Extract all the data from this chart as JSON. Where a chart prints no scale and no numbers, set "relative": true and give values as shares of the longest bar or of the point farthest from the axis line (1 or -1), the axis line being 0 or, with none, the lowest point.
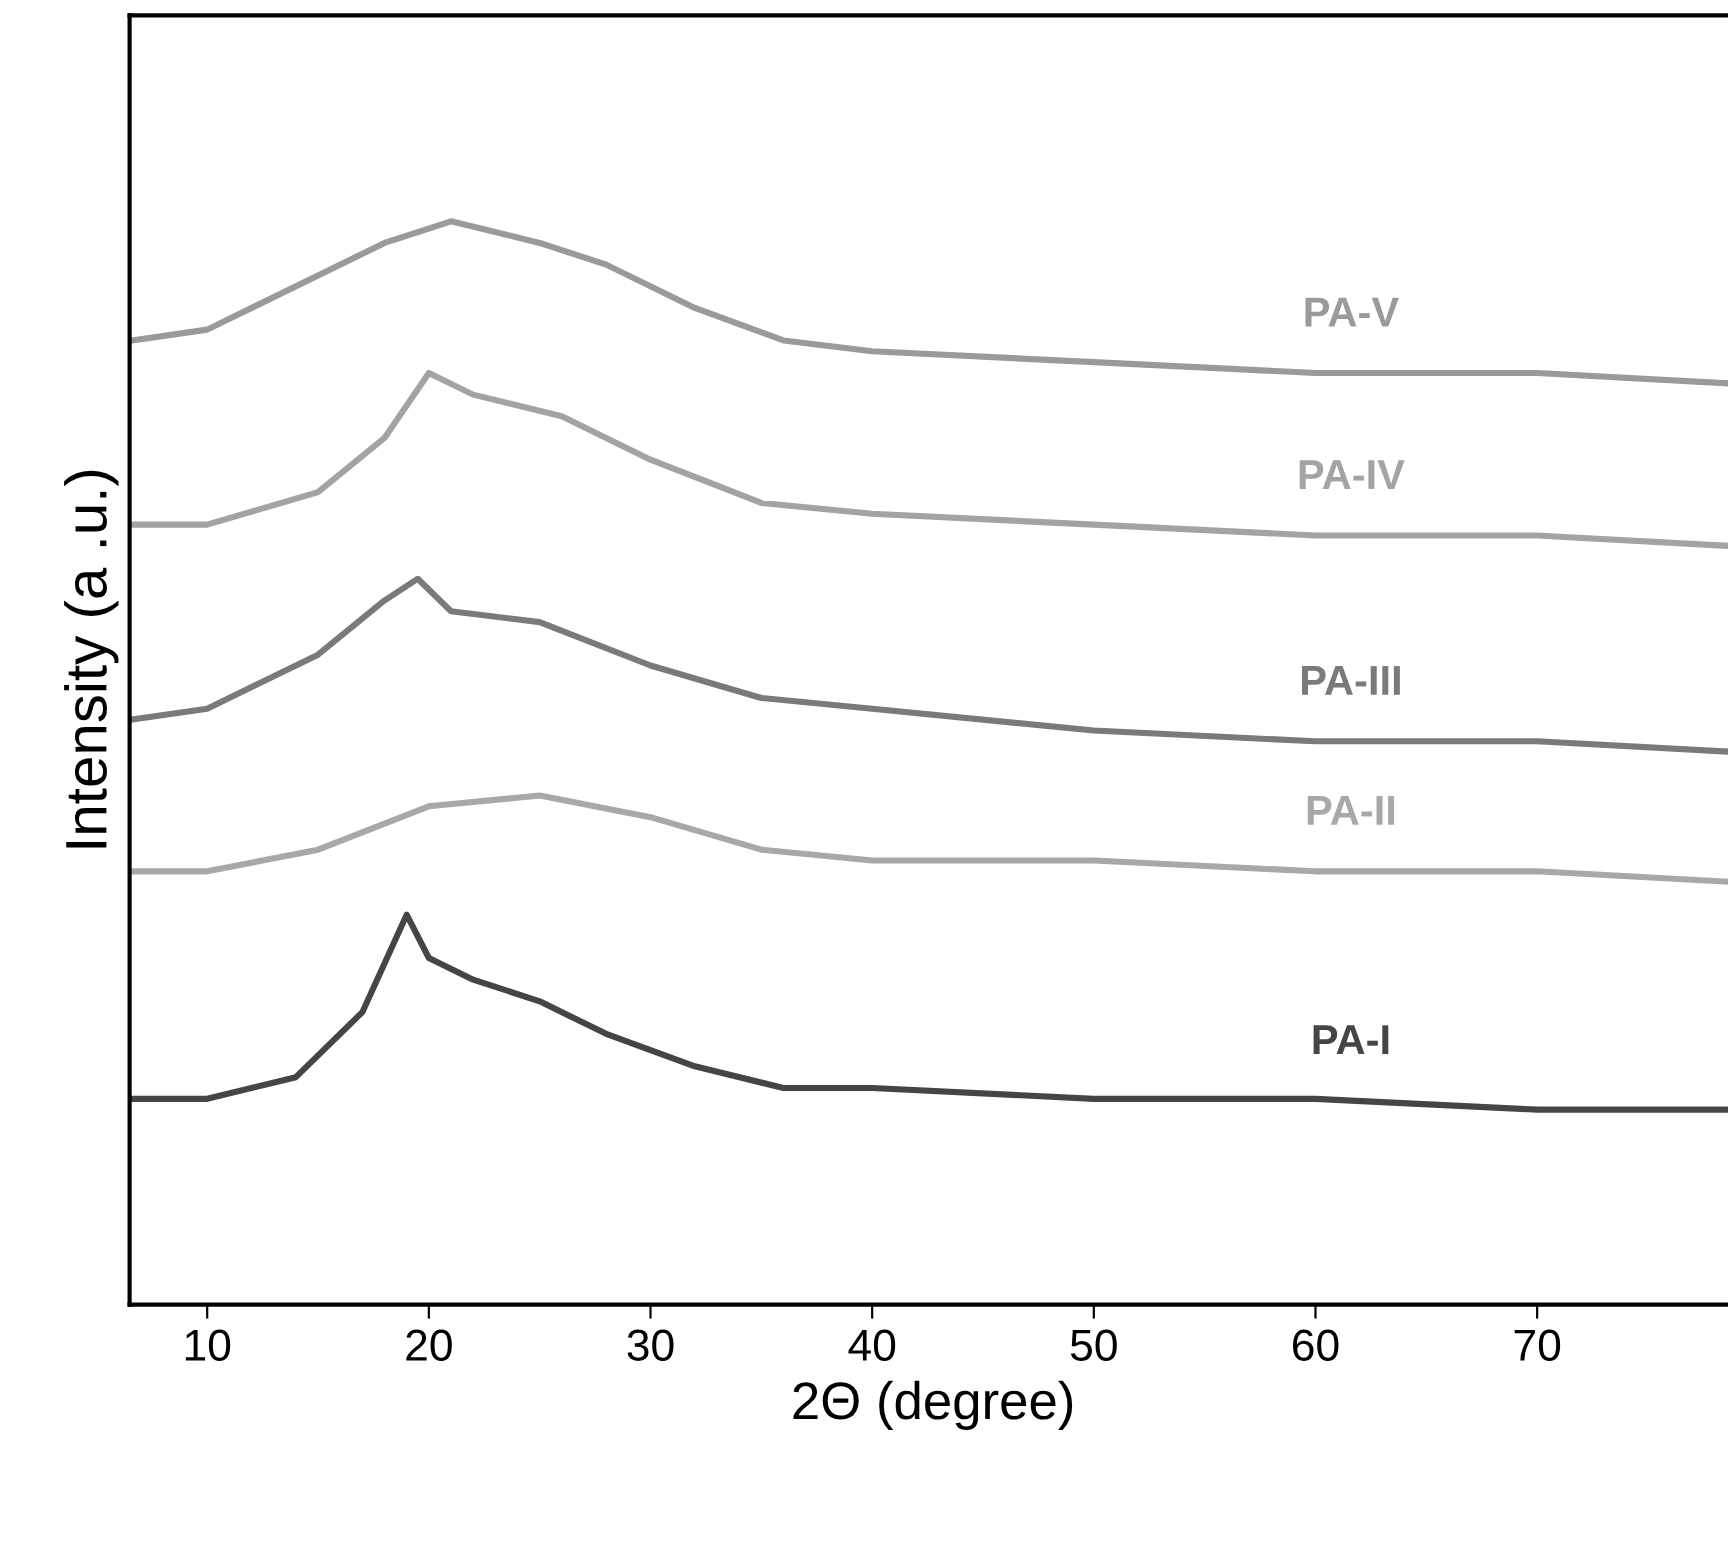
{
  "chart_data": {
    "type": "line",
    "xlabel": "2Θ (degree)",
    "ylabel": "Intensity (a .u.)",
    "relative": true,
    "xlim": [
      6.5,
      79
    ],
    "xticks": [
      10,
      20,
      30,
      40,
      50,
      60,
      70
    ],
    "tick_labels": "x",
    "legend": false,
    "grid": false,
    "series": [
      {
        "name": "PA-V",
        "color": "#9a9a9a",
        "x": [
          6.6,
          10,
          15,
          18,
          21,
          25,
          28,
          32,
          36,
          40,
          50,
          60,
          70,
          79
        ],
        "values": [
          0.89,
          0.9,
          0.95,
          0.98,
          1.0,
          0.98,
          0.96,
          0.92,
          0.89,
          0.88,
          0.87,
          0.86,
          0.86,
          0.85
        ]
      },
      {
        "name": "PA-IV",
        "color": "#a3a3a3",
        "x": [
          6.6,
          10,
          15,
          18,
          20,
          22,
          26,
          30,
          35,
          40,
          50,
          60,
          70,
          79
        ],
        "values": [
          0.72,
          0.72,
          0.75,
          0.8,
          0.86,
          0.84,
          0.82,
          0.78,
          0.74,
          0.73,
          0.72,
          0.71,
          0.71,
          0.7
        ]
      },
      {
        "name": "PA-III",
        "color": "#7a7a7a",
        "x": [
          6.6,
          10,
          15,
          18,
          19.5,
          21,
          25,
          30,
          35,
          40,
          50,
          60,
          70,
          79
        ],
        "values": [
          0.54,
          0.55,
          0.6,
          0.65,
          0.67,
          0.64,
          0.63,
          0.59,
          0.56,
          0.55,
          0.53,
          0.52,
          0.52,
          0.51
        ]
      },
      {
        "name": "PA-II",
        "color": "#a8a8a8",
        "x": [
          6.6,
          10,
          15,
          20,
          25,
          30,
          35,
          40,
          50,
          60,
          70,
          79
        ],
        "values": [
          0.4,
          0.4,
          0.42,
          0.46,
          0.47,
          0.45,
          0.42,
          0.41,
          0.41,
          0.4,
          0.4,
          0.39
        ]
      },
      {
        "name": "PA-I",
        "color": "#454545",
        "x": [
          6.6,
          10,
          14,
          17,
          19,
          20,
          22,
          25,
          28,
          32,
          36,
          40,
          50,
          60,
          70,
          79
        ],
        "values": [
          0.19,
          0.19,
          0.21,
          0.27,
          0.36,
          0.32,
          0.3,
          0.28,
          0.25,
          0.22,
          0.2,
          0.2,
          0.19,
          0.19,
          0.18,
          0.18
        ]
      }
    ]
  }
}
